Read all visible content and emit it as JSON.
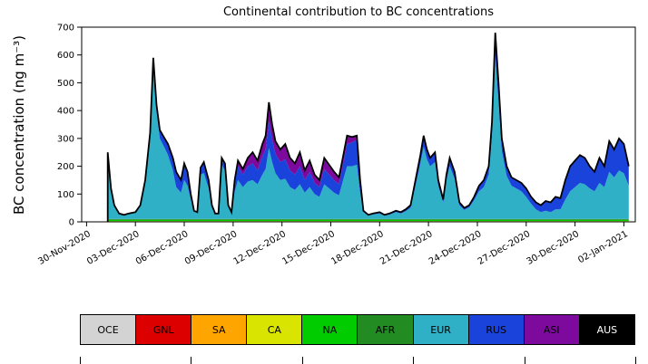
{
  "chart_data": {
    "type": "area",
    "stacked": true,
    "title": "Continental contribution to BC concentrations",
    "ylabel": "BC concentration (ng m⁻³)",
    "ylim": [
      0,
      700
    ],
    "yticks": [
      0,
      100,
      200,
      300,
      400,
      500,
      600,
      700
    ],
    "xlim": [
      -0.3,
      33.7
    ],
    "x_unit": "days since 30-Nov-2020",
    "xticks": [
      {
        "t": 0,
        "label": "30-Nov-2020"
      },
      {
        "t": 3,
        "label": "03-Dec-2020"
      },
      {
        "t": 6,
        "label": "06-Dec-2020"
      },
      {
        "t": 9,
        "label": "09-Dec-2020"
      },
      {
        "t": 12,
        "label": "12-Dec-2020"
      },
      {
        "t": 15,
        "label": "15-Dec-2020"
      },
      {
        "t": 18,
        "label": "18-Dec-2020"
      },
      {
        "t": 21,
        "label": "21-Dec-2020"
      },
      {
        "t": 24,
        "label": "24-Dec-2020"
      },
      {
        "t": 27,
        "label": "27-Dec-2020"
      },
      {
        "t": 30,
        "label": "30-Dec-2020"
      },
      {
        "t": 33,
        "label": "02-Jan-2021"
      }
    ],
    "x": [
      1.3,
      1.5,
      1.7,
      2.0,
      2.3,
      2.6,
      3.0,
      3.3,
      3.6,
      3.9,
      4.1,
      4.3,
      4.5,
      4.8,
      5.0,
      5.3,
      5.5,
      5.8,
      6.0,
      6.2,
      6.4,
      6.6,
      6.8,
      7.0,
      7.2,
      7.5,
      7.7,
      7.9,
      8.1,
      8.3,
      8.5,
      8.7,
      8.9,
      9.1,
      9.3,
      9.6,
      9.9,
      10.2,
      10.5,
      10.8,
      11.0,
      11.2,
      11.4,
      11.6,
      11.9,
      12.2,
      12.5,
      12.8,
      13.1,
      13.4,
      13.7,
      14.0,
      14.3,
      14.6,
      14.9,
      15.2,
      15.5,
      15.8,
      16.0,
      16.3,
      16.6,
      16.8,
      17.0,
      17.3,
      17.6,
      18.0,
      18.3,
      18.6,
      19.0,
      19.3,
      19.6,
      19.9,
      20.2,
      20.5,
      20.7,
      20.9,
      21.1,
      21.4,
      21.6,
      21.9,
      22.1,
      22.3,
      22.6,
      22.9,
      23.2,
      23.5,
      23.8,
      24.1,
      24.4,
      24.7,
      24.9,
      25.1,
      25.3,
      25.5,
      25.8,
      26.1,
      26.4,
      26.7,
      27.0,
      27.3,
      27.6,
      27.9,
      28.2,
      28.5,
      28.8,
      29.1,
      29.4,
      29.7,
      30.0,
      30.3,
      30.6,
      30.9,
      31.2,
      31.5,
      31.8,
      32.1,
      32.4,
      32.7,
      33.0,
      33.3
    ],
    "series": [
      {
        "name": "OCE",
        "color": "#d3d3d3",
        "constant": 1
      },
      {
        "name": "GNL",
        "color": "#dd0000",
        "constant": 0
      },
      {
        "name": "SA",
        "color": "#ffa500",
        "constant": 0
      },
      {
        "name": "CA",
        "color": "#d9e400",
        "constant": 2
      },
      {
        "name": "NA",
        "color": "#00cc00",
        "constant": 4
      },
      {
        "name": "AFR",
        "color": "#228b22",
        "constant": 3
      },
      {
        "name": "EUR",
        "color": "#2fb0c7",
        "values": [
          235,
          105,
          45,
          18,
          13,
          18,
          23,
          45,
          130,
          295,
          555,
          385,
          290,
          255,
          230,
          175,
          115,
          95,
          140,
          120,
          70,
          27,
          22,
          160,
          165,
          110,
          45,
          18,
          18,
          195,
          175,
          45,
          22,
          100,
          140,
          115,
          135,
          140,
          125,
          160,
          180,
          255,
          205,
          165,
          140,
          145,
          115,
          105,
          125,
          95,
          115,
          90,
          80,
          125,
          110,
          95,
          85,
          150,
          190,
          190,
          195,
          95,
          25,
          13,
          17,
          20,
          12,
          16,
          25,
          20,
          28,
          40,
          120,
          200,
          260,
          215,
          190,
          205,
          120,
          60,
          140,
          190,
          145,
          50,
          33,
          42,
          68,
          100,
          115,
          160,
          300,
          590,
          420,
          245,
          155,
          120,
          110,
          100,
          80,
          55,
          35,
          25,
          30,
          25,
          35,
          35,
          70,
          100,
          115,
          130,
          125,
          110,
          100,
          130,
          115,
          170,
          150,
          175,
          165,
          120
        ]
      },
      {
        "name": "RUS",
        "color": "#1943db",
        "values": [
          5,
          5,
          5,
          2,
          2,
          2,
          2,
          5,
          10,
          15,
          25,
          25,
          30,
          35,
          40,
          45,
          55,
          45,
          60,
          50,
          20,
          3,
          3,
          25,
          40,
          30,
          5,
          2,
          2,
          25,
          25,
          5,
          3,
          30,
          50,
          45,
          55,
          60,
          50,
          65,
          70,
          95,
          80,
          70,
          65,
          70,
          60,
          55,
          65,
          45,
          55,
          40,
          35,
          55,
          50,
          45,
          40,
          60,
          80,
          85,
          90,
          40,
          5,
          2,
          3,
          5,
          3,
          4,
          5,
          5,
          7,
          10,
          20,
          30,
          40,
          35,
          30,
          35,
          20,
          10,
          20,
          30,
          25,
          10,
          7,
          8,
          12,
          20,
          25,
          30,
          50,
          80,
          70,
          45,
          35,
          30,
          30,
          30,
          30,
          25,
          25,
          25,
          35,
          35,
          45,
          40,
          70,
          90,
          95,
          100,
          95,
          80,
          70,
          90,
          75,
          110,
          100,
          115,
          105,
          70
        ]
      },
      {
        "name": "ASI",
        "color": "#7d0a9c",
        "values": [
          0,
          0,
          0,
          0,
          0,
          0,
          0,
          0,
          0,
          0,
          0,
          0,
          0,
          0,
          0,
          0,
          0,
          0,
          0,
          0,
          0,
          0,
          0,
          0,
          0,
          0,
          0,
          0,
          0,
          0,
          0,
          0,
          0,
          10,
          20,
          20,
          30,
          40,
          35,
          45,
          50,
          70,
          55,
          45,
          45,
          55,
          45,
          40,
          50,
          35,
          40,
          30,
          25,
          40,
          35,
          30,
          25,
          30,
          30,
          20,
          15,
          5,
          0,
          0,
          0,
          0,
          0,
          0,
          0,
          0,
          0,
          0,
          0,
          0,
          0,
          0,
          0,
          0,
          0,
          0,
          0,
          0,
          0,
          0,
          0,
          0,
          0,
          0,
          0,
          0,
          0,
          0,
          0,
          0,
          0,
          0,
          0,
          0,
          0,
          0,
          0,
          0,
          0,
          0,
          0,
          0,
          0,
          0,
          0,
          0,
          0,
          0,
          0,
          0,
          0,
          0,
          0,
          0,
          0,
          0
        ]
      },
      {
        "name": "AUS",
        "color": "#000000",
        "constant": 0
      }
    ],
    "total_line_color": "#000000"
  },
  "legend": {
    "items": [
      {
        "label": "OCE",
        "color": "#d3d3d3",
        "text_color": "#000000"
      },
      {
        "label": "GNL",
        "color": "#dd0000",
        "text_color": "#000000"
      },
      {
        "label": "SA",
        "color": "#ffa500",
        "text_color": "#000000"
      },
      {
        "label": "CA",
        "color": "#d9e400",
        "text_color": "#000000"
      },
      {
        "label": "NA",
        "color": "#00cc00",
        "text_color": "#000000"
      },
      {
        "label": "AFR",
        "color": "#228b22",
        "text_color": "#000000"
      },
      {
        "label": "EUR",
        "color": "#2fb0c7",
        "text_color": "#000000"
      },
      {
        "label": "RUS",
        "color": "#1943db",
        "text_color": "#000000"
      },
      {
        "label": "ASI",
        "color": "#7d0a9c",
        "text_color": "#000000"
      },
      {
        "label": "AUS",
        "color": "#000000",
        "text_color": "#ffffff"
      }
    ]
  }
}
